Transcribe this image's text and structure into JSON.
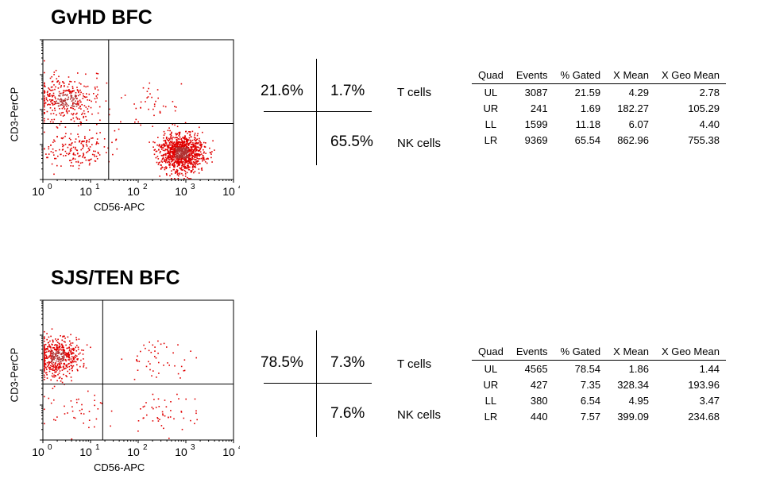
{
  "colors": {
    "dots": "#e00000",
    "dense": "#b03030",
    "axis": "#000000"
  },
  "panels": [
    {
      "title": "GvHD BFC",
      "xlabel": "CD56-APC",
      "ylabel": "CD3-PerCP",
      "summary": {
        "ul": "21.6%",
        "ur": "1.7%",
        "lr": "65.5%",
        "t_label": "T cells",
        "nk_label": "NK cells"
      },
      "table": {
        "headers": [
          "Quad",
          "Events",
          "% Gated",
          "X Mean",
          "X Geo Mean"
        ],
        "rows": [
          [
            "UL",
            "3087",
            "21.59",
            "4.29",
            "2.78"
          ],
          [
            "UR",
            "241",
            "1.69",
            "182.27",
            "105.29"
          ],
          [
            "LL",
            "1599",
            "11.18",
            "6.07",
            "4.40"
          ],
          [
            "LR",
            "9369",
            "65.54",
            "862.96",
            "755.38"
          ]
        ]
      }
    },
    {
      "title": "SJS/TEN BFC",
      "xlabel": "CD56-APC",
      "ylabel": "CD3-PerCP",
      "summary": {
        "ul": "78.5%",
        "ur": "7.3%",
        "lr": "7.6%",
        "t_label": "T cells",
        "nk_label": "NK cells"
      },
      "table": {
        "headers": [
          "Quad",
          "Events",
          "% Gated",
          "X Mean",
          "X Geo Mean"
        ],
        "rows": [
          [
            "UL",
            "4565",
            "78.54",
            "1.86",
            "1.44"
          ],
          [
            "UR",
            "427",
            "7.35",
            "328.34",
            "193.96"
          ],
          [
            "LL",
            "380",
            "6.54",
            "4.95",
            "3.47"
          ],
          [
            "LR",
            "440",
            "7.57",
            "399.09",
            "234.68"
          ]
        ]
      }
    }
  ],
  "chart_data": [
    {
      "type": "scatter",
      "title": "GvHD BFC",
      "xlabel": "CD56-APC",
      "ylabel": "CD3-PerCP",
      "x_scale": "log",
      "xlim": [
        1,
        10000
      ],
      "x_ticks": [
        1,
        10,
        100,
        1000,
        10000
      ],
      "x_tick_labels": [
        "10",
        "10",
        "10",
        "10",
        "10"
      ],
      "x_tick_exponents": [
        "0",
        "1",
        "2",
        "3",
        "4"
      ],
      "y_scale": "log",
      "ylim": [
        1,
        10000
      ],
      "quadrant_gate": {
        "x": 24,
        "y": 40
      },
      "clusters": [
        {
          "quadrant": "UL",
          "x_center": 3,
          "y_center": 200,
          "events": 3087,
          "percent": 21.59
        },
        {
          "quadrant": "UR",
          "x_center": 182,
          "y_center": 150,
          "events": 241,
          "percent": 1.69
        },
        {
          "quadrant": "LL",
          "x_center": 5,
          "y_center": 8,
          "events": 1599,
          "percent": 11.18
        },
        {
          "quadrant": "LR",
          "x_center": 800,
          "y_center": 6,
          "events": 9369,
          "percent": 65.54
        }
      ]
    },
    {
      "type": "scatter",
      "title": "SJS/TEN BFC",
      "xlabel": "CD56-APC",
      "ylabel": "CD3-PerCP",
      "x_scale": "log",
      "xlim": [
        1,
        10000
      ],
      "x_ticks": [
        1,
        10,
        100,
        1000,
        10000
      ],
      "x_tick_labels": [
        "10",
        "10",
        "10",
        "10",
        "10"
      ],
      "x_tick_exponents": [
        "0",
        "1",
        "2",
        "3",
        "4"
      ],
      "y_scale": "log",
      "ylim": [
        1,
        10000
      ],
      "quadrant_gate": {
        "x": 18,
        "y": 40
      },
      "clusters": [
        {
          "quadrant": "UL",
          "x_center": 2,
          "y_center": 250,
          "events": 4565,
          "percent": 78.54
        },
        {
          "quadrant": "UR",
          "x_center": 200,
          "y_center": 200,
          "events": 427,
          "percent": 7.35
        },
        {
          "quadrant": "LL",
          "x_center": 4,
          "y_center": 8,
          "events": 380,
          "percent": 6.54
        },
        {
          "quadrant": "LR",
          "x_center": 300,
          "y_center": 6,
          "events": 440,
          "percent": 7.57
        }
      ]
    }
  ]
}
